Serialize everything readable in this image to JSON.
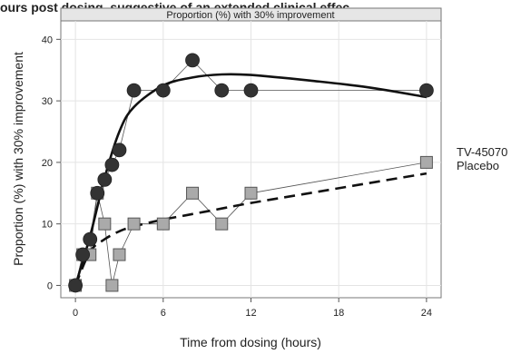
{
  "header_text": "ours post dosing, suggestive of an extended clinical effec",
  "chart_data": {
    "type": "line",
    "title": "Proportion (%) with 30% improvement",
    "xlabel": "Time from dosing (hours)",
    "ylabel": "Proportion (%) with 30% improvement",
    "xlim": [
      -1,
      25
    ],
    "ylim": [
      -2,
      43
    ],
    "x_ticks": [
      0,
      6,
      12,
      18,
      24
    ],
    "y_ticks": [
      0,
      10,
      20,
      30,
      40
    ],
    "grid": true,
    "legend_position": "right",
    "series": [
      {
        "name": "TV-45070",
        "marker": "circle",
        "x": [
          0,
          0.5,
          1,
          1.5,
          2,
          2.5,
          3,
          4,
          6,
          8,
          10,
          12,
          24
        ],
        "y": [
          0,
          5,
          7.5,
          15,
          17.2,
          19.6,
          22,
          31.7,
          31.7,
          36.6,
          31.7,
          31.7,
          31.7
        ],
        "fit_x": [
          0,
          1,
          2,
          3,
          4,
          6,
          8,
          10,
          12,
          16,
          20,
          24
        ],
        "fit_y": [
          0,
          8,
          17.5,
          25,
          29,
          32.5,
          33.8,
          34.3,
          34.2,
          33.3,
          32.2,
          30.6
        ],
        "fit_style": "solid"
      },
      {
        "name": "Placebo",
        "marker": "square",
        "x": [
          0,
          0.5,
          1,
          1.5,
          2,
          2.5,
          3,
          4,
          6,
          8,
          10,
          12,
          24
        ],
        "y": [
          0,
          5,
          5,
          15,
          10,
          0,
          5,
          10,
          10,
          15,
          10,
          15,
          20
        ],
        "fit_x": [
          0,
          1,
          2,
          3,
          4,
          6,
          8,
          10,
          12,
          16,
          20,
          24
        ],
        "fit_y": [
          0,
          5.5,
          7.5,
          8.8,
          9.6,
          10.7,
          11.6,
          12.5,
          13.4,
          15,
          16.6,
          18.2
        ],
        "fit_style": "dashed"
      }
    ],
    "colors": {
      "circle_fill": "#333333",
      "square_fill": "#aaaaaa",
      "square_stroke": "#555555",
      "raw_line": "#555555",
      "fit_line": "#111111",
      "panel_border": "#777777",
      "strip_fill": "#e6e6e6",
      "grid": "#e4e4e4"
    }
  }
}
